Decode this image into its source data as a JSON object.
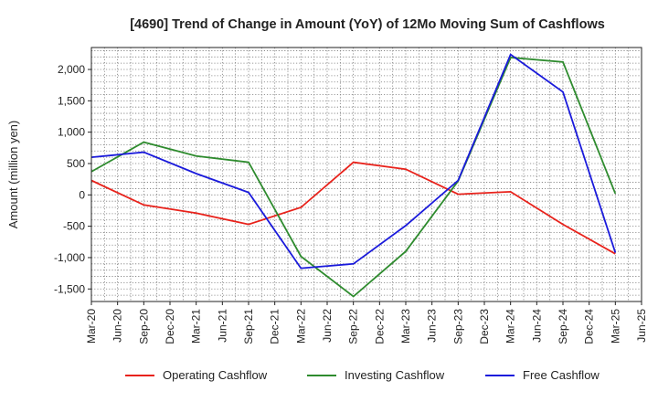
{
  "chart_data": {
    "type": "line",
    "title": "[4690]  Trend of Change in Amount (YoY) of 12Mo Moving Sum of Cashflows",
    "xlabel": "",
    "ylabel": "Amount (million yen)",
    "ylim": [
      -1700,
      2350
    ],
    "yticks": [
      -1500,
      -1000,
      -500,
      0,
      500,
      1000,
      1500,
      2000
    ],
    "ytick_labels": [
      "-1,500",
      "-1,000",
      "-500",
      "0",
      "500",
      "1,000",
      "1,500",
      "2,000"
    ],
    "categories": [
      "Mar-20",
      "Jun-20",
      "Sep-20",
      "Dec-20",
      "Mar-21",
      "Jun-21",
      "Sep-21",
      "Dec-21",
      "Mar-22",
      "Jun-22",
      "Sep-22",
      "Dec-22",
      "Mar-23",
      "Jun-23",
      "Sep-23",
      "Dec-23",
      "Mar-24",
      "Jun-24",
      "Sep-24",
      "Dec-24",
      "Mar-25",
      "Jun-25"
    ],
    "grid": true,
    "legend_position": "bottom",
    "series": [
      {
        "name": "Operating Cashflow",
        "color": "#e8221b",
        "values": [
          230,
          null,
          -160,
          null,
          -290,
          null,
          -470,
          null,
          -200,
          null,
          520,
          null,
          410,
          null,
          10,
          null,
          50,
          null,
          -470,
          null,
          -940,
          null
        ]
      },
      {
        "name": "Investing Cashflow",
        "color": "#2e8b2e",
        "values": [
          370,
          null,
          840,
          null,
          620,
          null,
          520,
          null,
          -980,
          null,
          -1620,
          null,
          -900,
          null,
          220,
          null,
          2190,
          null,
          2120,
          null,
          20,
          null
        ]
      },
      {
        "name": "Free Cashflow",
        "color": "#1a1adb",
        "values": [
          600,
          null,
          680,
          null,
          340,
          null,
          40,
          null,
          -1170,
          null,
          -1100,
          null,
          -490,
          null,
          230,
          null,
          2240,
          null,
          1640,
          null,
          -920,
          null
        ]
      }
    ]
  }
}
